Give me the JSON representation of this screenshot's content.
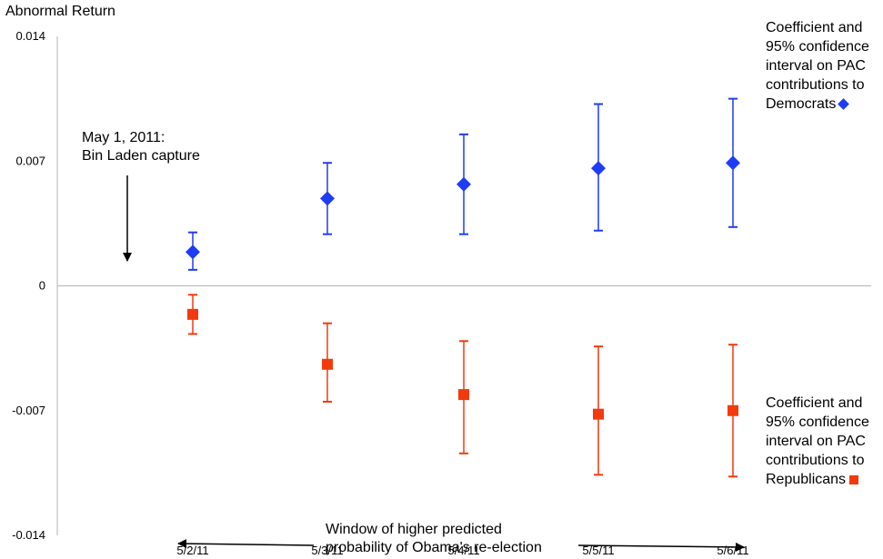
{
  "chart_data": {
    "type": "scatter",
    "title": "",
    "ylabel": "Abnormal Return",
    "xlabel": "",
    "ylim": [
      -0.014,
      0.014
    ],
    "y_ticks": [
      "0.014",
      "0.007",
      "0",
      "-0.007",
      "-0.014"
    ],
    "y_tick_values": [
      0.014,
      0.007,
      0,
      -0.007,
      -0.014
    ],
    "categories": [
      "5/2/11",
      "5/3/11",
      "5/4/11",
      "5/5/11",
      "5/6/11"
    ],
    "series": [
      {
        "name": "Democrats",
        "marker": "diamond",
        "color": "#1f3cf5",
        "values": [
          0.0019,
          0.0049,
          0.0057,
          0.0066,
          0.0069
        ],
        "ci_low": [
          0.0009,
          0.0029,
          0.0029,
          0.0031,
          0.0033
        ],
        "ci_high": [
          0.003,
          0.0069,
          0.0085,
          0.0102,
          0.0105
        ]
      },
      {
        "name": "Republicans",
        "marker": "square",
        "color": "#f23a0d",
        "values": [
          -0.0016,
          -0.0044,
          -0.0061,
          -0.0072,
          -0.007
        ],
        "ci_low": [
          -0.0027,
          -0.0065,
          -0.0094,
          -0.0106,
          -0.0107
        ],
        "ci_high": [
          -0.0005,
          -0.0021,
          -0.0031,
          -0.0034,
          -0.0033
        ]
      }
    ]
  },
  "annotations": {
    "event": "May 1, 2011:\nBin Laden capture",
    "window": "Window of higher predicted\nprobability of Obama's re-election"
  },
  "legend": {
    "democrats_lines": [
      "Coefficient and",
      "95% confidence",
      "interval on PAC",
      "contributions to",
      "Democrats"
    ],
    "republicans_lines": [
      "Coefficient and",
      "95% confidence",
      "interval on PAC",
      "contributions to",
      "Republicans"
    ]
  }
}
